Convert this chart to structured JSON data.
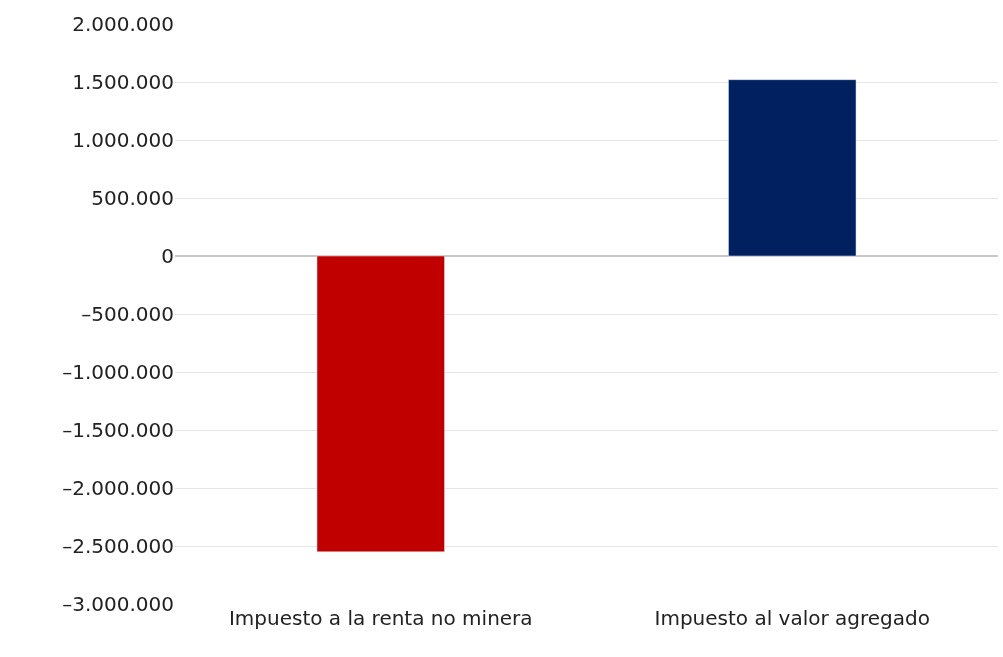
{
  "chart_data": {
    "type": "bar",
    "categories": [
      "Impuesto a la renta no minera",
      "Impuesto al valor agregado"
    ],
    "values": [
      -2550000,
      1520000
    ],
    "colors": [
      "#c00000",
      "#002060"
    ],
    "ylim": [
      -3000000,
      2000000
    ],
    "yticks": [
      {
        "value": 2000000,
        "label": "2.000.000"
      },
      {
        "value": 1500000,
        "label": "1.500.000"
      },
      {
        "value": 1000000,
        "label": "1.000.000"
      },
      {
        "value": 500000,
        "label": "500.000"
      },
      0,
      {
        "value": -500000,
        "label": "–500.000"
      },
      {
        "value": -1000000,
        "label": "–1.000.000"
      },
      {
        "value": -1500000,
        "label": "–1.500.000"
      },
      {
        "value": -2000000,
        "label": "–2.000.000"
      },
      {
        "value": -2500000,
        "label": "–2.500.000"
      },
      {
        "value": -3000000,
        "label": "–3.000.000"
      }
    ],
    "grid": "y"
  }
}
